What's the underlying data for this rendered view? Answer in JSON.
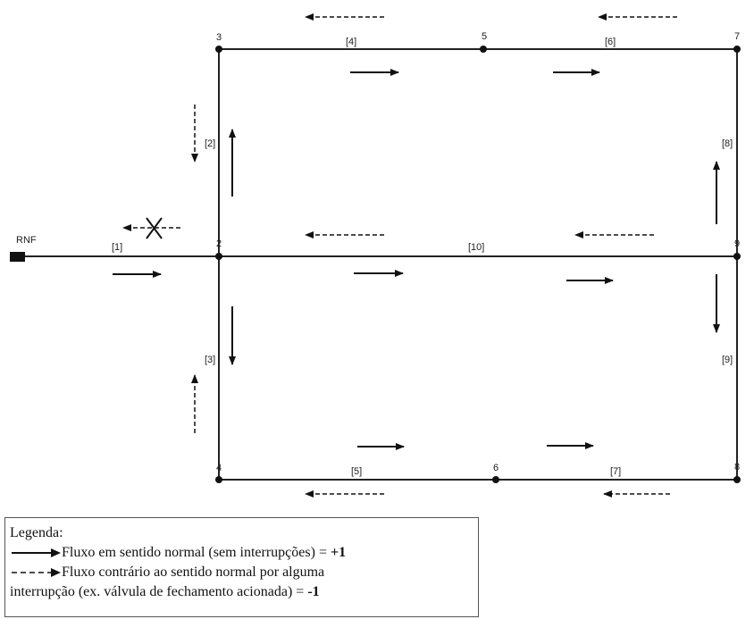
{
  "rnf_label": "RNF",
  "nodes": [
    {
      "id": "2",
      "label": "2"
    },
    {
      "id": "3",
      "label": "3"
    },
    {
      "id": "4",
      "label": "4"
    },
    {
      "id": "5",
      "label": "5"
    },
    {
      "id": "6",
      "label": "6"
    },
    {
      "id": "7",
      "label": "7"
    },
    {
      "id": "8",
      "label": "8"
    },
    {
      "id": "9",
      "label": "9"
    }
  ],
  "pipes": [
    {
      "id": "1",
      "label": "[1]"
    },
    {
      "id": "2",
      "label": "[2]"
    },
    {
      "id": "3",
      "label": "[3]"
    },
    {
      "id": "4",
      "label": "[4]"
    },
    {
      "id": "5",
      "label": "[5]"
    },
    {
      "id": "6",
      "label": "[6]"
    },
    {
      "id": "7",
      "label": "[7]"
    },
    {
      "id": "8",
      "label": "[8]"
    },
    {
      "id": "9",
      "label": "[9]"
    },
    {
      "id": "10",
      "label": "[10]"
    }
  ],
  "legend": {
    "title": "Legenda:",
    "solid_text": "Fluxo em sentido normal (sem interrupções) = ",
    "solid_value": "+1",
    "dashed_text_1": "Fluxo contrário ao sentido normal por alguma",
    "dashed_text_2": "interrupção (ex. válvula de fechamento acionada) = ",
    "dashed_value": "-1"
  }
}
